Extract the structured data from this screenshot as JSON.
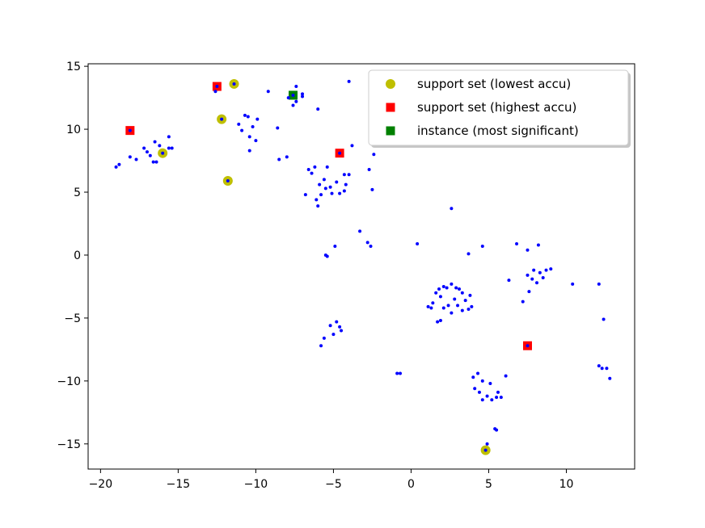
{
  "chart_data": {
    "type": "scatter",
    "title": "",
    "xlabel": "",
    "ylabel": "",
    "xlim": [
      -20.8,
      14.4
    ],
    "ylim": [
      -17,
      15.2
    ],
    "xticks": [
      -20,
      -15,
      -10,
      -5,
      0,
      5,
      10
    ],
    "yticks": [
      15,
      10,
      5,
      0,
      -5,
      -10,
      -15
    ],
    "xtick_labels": [
      "−20",
      "−15",
      "−10",
      "−5",
      "0",
      "5",
      "10"
    ],
    "ytick_labels": [
      "15",
      "10",
      "5",
      "0",
      "−5",
      "−10",
      "−15"
    ],
    "grid": false,
    "legend": {
      "placement": "top-right",
      "entries": [
        {
          "label": "support set (lowest accu)",
          "marker": "circle",
          "color": "#bfbf00"
        },
        {
          "label": "support set (highest accu)",
          "marker": "square",
          "color": "#ff0000"
        },
        {
          "label": "instance (most significant)",
          "marker": "square",
          "color": "#008000"
        }
      ]
    },
    "series": [
      {
        "name": "support set (lowest accu)",
        "marker": "circle",
        "color": "#bfbf00",
        "points": [
          [
            -11.4,
            13.6
          ],
          [
            -12.2,
            10.8
          ],
          [
            -16.0,
            8.1
          ],
          [
            -11.8,
            5.9
          ],
          [
            4.8,
            -15.5
          ]
        ]
      },
      {
        "name": "support set (highest accu)",
        "marker": "square",
        "color": "#ff0000",
        "points": [
          [
            -12.5,
            13.4
          ],
          [
            -18.1,
            9.9
          ],
          [
            -4.6,
            8.1
          ],
          [
            7.5,
            -7.2
          ]
        ]
      },
      {
        "name": "instance (most significant)",
        "marker": "square",
        "color": "#008000",
        "points": [
          [
            -7.6,
            12.7
          ]
        ]
      },
      {
        "marker": "dot",
        "color": "#0000ff",
        "points": [
          [
            -19.0,
            7.0
          ],
          [
            -18.8,
            7.2
          ],
          [
            -18.1,
            9.9
          ],
          [
            -18.1,
            7.8
          ],
          [
            -17.7,
            7.6
          ],
          [
            -17.2,
            8.5
          ],
          [
            -17.0,
            8.2
          ],
          [
            -16.8,
            7.9
          ],
          [
            -16.6,
            7.4
          ],
          [
            -16.4,
            7.4
          ],
          [
            -16.5,
            9.0
          ],
          [
            -16.2,
            8.7
          ],
          [
            -16.0,
            8.1
          ],
          [
            -15.6,
            8.5
          ],
          [
            -15.4,
            8.5
          ],
          [
            -15.6,
            9.4
          ],
          [
            -12.6,
            13.0
          ],
          [
            -12.5,
            13.4
          ],
          [
            -12.2,
            10.8
          ],
          [
            -11.8,
            5.9
          ],
          [
            -11.4,
            13.6
          ],
          [
            -11.1,
            10.4
          ],
          [
            -10.9,
            9.9
          ],
          [
            -10.7,
            11.1
          ],
          [
            -10.5,
            11.0
          ],
          [
            -10.4,
            9.4
          ],
          [
            -10.4,
            8.3
          ],
          [
            -10.2,
            10.2
          ],
          [
            -10.0,
            9.1
          ],
          [
            -9.9,
            10.8
          ],
          [
            -9.2,
            13.0
          ],
          [
            -8.6,
            10.1
          ],
          [
            -8.5,
            7.6
          ],
          [
            -8.0,
            7.8
          ],
          [
            -7.9,
            12.5
          ],
          [
            -7.6,
            11.9
          ],
          [
            -7.4,
            12.2
          ],
          [
            -7.6,
            12.7
          ],
          [
            -7.4,
            13.4
          ],
          [
            -7.0,
            12.6
          ],
          [
            -7.0,
            12.8
          ],
          [
            -6.8,
            4.8
          ],
          [
            -6.6,
            6.8
          ],
          [
            -6.4,
            6.5
          ],
          [
            -6.2,
            7.0
          ],
          [
            -6.1,
            4.4
          ],
          [
            -6.0,
            3.9
          ],
          [
            -5.9,
            5.6
          ],
          [
            -5.8,
            4.8
          ],
          [
            -5.6,
            6.0
          ],
          [
            -5.5,
            5.3
          ],
          [
            -5.4,
            7.0
          ],
          [
            -5.2,
            5.4
          ],
          [
            -5.1,
            4.9
          ],
          [
            -4.8,
            5.8
          ],
          [
            -4.6,
            4.9
          ],
          [
            -4.6,
            8.1
          ],
          [
            -4.3,
            6.4
          ],
          [
            -4.3,
            5.1
          ],
          [
            -4.2,
            5.6
          ],
          [
            -4.0,
            6.4
          ],
          [
            -4.0,
            13.8
          ],
          [
            -3.8,
            8.7
          ],
          [
            -6.0,
            11.6
          ],
          [
            -2.7,
            6.8
          ],
          [
            -2.5,
            5.2
          ],
          [
            -2.4,
            8.0
          ],
          [
            -3.3,
            1.9
          ],
          [
            -2.8,
            1.0
          ],
          [
            -2.6,
            0.7
          ],
          [
            -4.9,
            0.7
          ],
          [
            -5.5,
            0.0
          ],
          [
            -5.4,
            -0.1
          ],
          [
            -5.2,
            -5.6
          ],
          [
            -5.0,
            -6.3
          ],
          [
            -4.8,
            -5.3
          ],
          [
            -4.6,
            -5.7
          ],
          [
            -4.5,
            -6.0
          ],
          [
            -5.6,
            -6.6
          ],
          [
            -5.8,
            -7.2
          ],
          [
            -0.9,
            -9.4
          ],
          [
            -0.7,
            -9.4
          ],
          [
            0.4,
            0.9
          ],
          [
            2.6,
            3.7
          ],
          [
            3.7,
            0.1
          ],
          [
            4.6,
            0.7
          ],
          [
            6.8,
            0.9
          ],
          [
            7.5,
            0.4
          ],
          [
            8.2,
            0.8
          ],
          [
            1.1,
            -4.1
          ],
          [
            1.3,
            -4.2
          ],
          [
            1.4,
            -3.8
          ],
          [
            1.6,
            -3.0
          ],
          [
            1.8,
            -2.7
          ],
          [
            1.9,
            -3.3
          ],
          [
            2.1,
            -2.5
          ],
          [
            2.3,
            -2.6
          ],
          [
            2.6,
            -2.3
          ],
          [
            2.9,
            -2.6
          ],
          [
            3.1,
            -2.7
          ],
          [
            3.3,
            -3.0
          ],
          [
            3.5,
            -3.6
          ],
          [
            3.8,
            -3.2
          ],
          [
            3.9,
            -4.1
          ],
          [
            3.7,
            -4.3
          ],
          [
            3.3,
            -4.4
          ],
          [
            3.0,
            -4.0
          ],
          [
            2.8,
            -3.5
          ],
          [
            2.6,
            -4.6
          ],
          [
            2.4,
            -4.0
          ],
          [
            2.1,
            -4.2
          ],
          [
            1.9,
            -5.2
          ],
          [
            1.7,
            -5.3
          ],
          [
            6.3,
            -2.0
          ],
          [
            7.2,
            -3.7
          ],
          [
            7.5,
            -1.6
          ],
          [
            7.6,
            -2.9
          ],
          [
            7.8,
            -1.9
          ],
          [
            7.9,
            -1.2
          ],
          [
            8.1,
            -2.2
          ],
          [
            8.3,
            -1.4
          ],
          [
            8.5,
            -1.8
          ],
          [
            8.7,
            -1.2
          ],
          [
            9.0,
            -1.1
          ],
          [
            10.4,
            -2.3
          ],
          [
            12.1,
            -2.3
          ],
          [
            12.4,
            -5.1
          ],
          [
            12.1,
            -8.8
          ],
          [
            12.3,
            -9.0
          ],
          [
            12.6,
            -9.0
          ],
          [
            12.8,
            -9.8
          ],
          [
            7.5,
            -7.2
          ],
          [
            4.0,
            -9.7
          ],
          [
            4.3,
            -9.4
          ],
          [
            4.6,
            -10.0
          ],
          [
            4.1,
            -10.6
          ],
          [
            4.4,
            -10.9
          ],
          [
            4.6,
            -11.5
          ],
          [
            4.9,
            -11.2
          ],
          [
            5.1,
            -10.2
          ],
          [
            5.2,
            -11.5
          ],
          [
            5.5,
            -11.3
          ],
          [
            5.6,
            -10.9
          ],
          [
            5.8,
            -11.3
          ],
          [
            6.1,
            -9.6
          ],
          [
            5.4,
            -13.8
          ],
          [
            5.5,
            -13.9
          ],
          [
            4.9,
            -15.0
          ],
          [
            4.8,
            -15.5
          ]
        ]
      }
    ]
  }
}
